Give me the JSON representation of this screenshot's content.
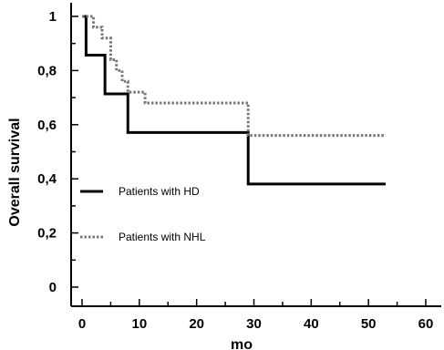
{
  "chart_data": {
    "type": "line",
    "step": true,
    "title": "",
    "xlabel": "mo",
    "ylabel": "Overall survival",
    "xlim": [
      0,
      60
    ],
    "ylim": [
      0,
      1
    ],
    "x_ticks": [
      0,
      10,
      20,
      30,
      40,
      50,
      60
    ],
    "y_ticks": [
      {
        "value": 0,
        "label": "0"
      },
      {
        "value": 0.2,
        "label": "0,2"
      },
      {
        "value": 0.4,
        "label": "0,4"
      },
      {
        "value": 0.6,
        "label": "0,6"
      },
      {
        "value": 0.8,
        "label": "0,8"
      },
      {
        "value": 1,
        "label": "1"
      }
    ],
    "grid": false,
    "legend_position": "left-middle",
    "series": [
      {
        "name": "Patients with HD",
        "style": "solid",
        "color": "#000000",
        "x": [
          0,
          0.7,
          4,
          8,
          29,
          53
        ],
        "y": [
          1,
          0.857,
          0.714,
          0.571,
          0.381,
          0.381
        ]
      },
      {
        "name": "Patients with NHL",
        "style": "dotted",
        "color": "#777777",
        "x": [
          0,
          2,
          3.5,
          5,
          6,
          7,
          8,
          11,
          29,
          53
        ],
        "y": [
          1,
          0.96,
          0.92,
          0.84,
          0.8,
          0.76,
          0.72,
          0.68,
          0.56,
          0.56
        ]
      }
    ]
  }
}
